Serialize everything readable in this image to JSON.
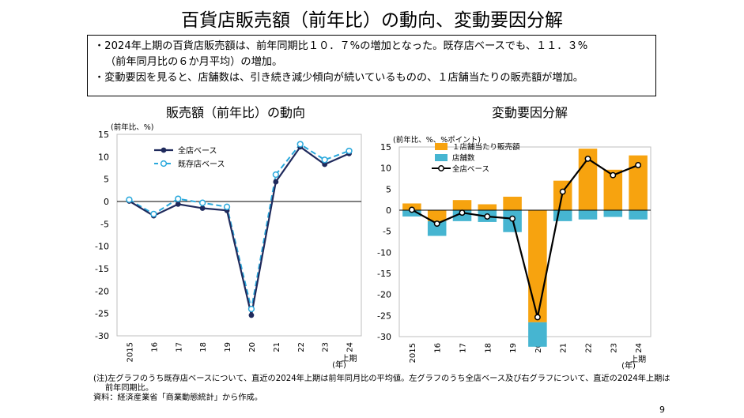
{
  "title": "百貨店販売額（前年比）の動向、変動要因分解",
  "summary": {
    "line1": "・2024年上期の百貨店販売額は、前年同期比１０．７%の増加となった。既存店ベースでも、１１．３%",
    "line2": "（前年同月比の６か月平均）の増加。",
    "line3": "・変動要因を見ると、店舗数は、引き続き減少傾向が続いているものの、１店舗当たりの販売額が増加。"
  },
  "notes": {
    "line1": "(注)左グラフのうち既存店ベースについて、直近の2024年上期は前年同月比の平均値。左グラフのうち全店ベース及び右グラフについて、直近の2024年上期は",
    "line2": "前年同期比。",
    "line3": "資料：経済産業省「商業動態統計」から作成。"
  },
  "page_number": "9",
  "chart_data": [
    {
      "type": "line",
      "title": "販売額（前年比）の動向",
      "unit_label": "(前年比、%)",
      "xlabel": "(年)",
      "categories": [
        "2015",
        "16",
        "17",
        "18",
        "19",
        "20",
        "21",
        "22",
        "23",
        "24"
      ],
      "last_category_sub": "上期",
      "ylim": [
        -30,
        15
      ],
      "yticks": [
        15,
        10,
        5,
        0,
        -5,
        -10,
        -15,
        -20,
        -25,
        -30
      ],
      "legend_position": "top-left",
      "colors": {
        "all_stores": "#1f2a5c",
        "existing_stores": "#29a8dc"
      },
      "series": [
        {
          "name": "全店ベース",
          "values": [
            0.1,
            -3.2,
            -0.6,
            -1.5,
            -2.0,
            -25.4,
            4.4,
            12.2,
            8.3,
            10.7
          ]
        },
        {
          "name": "既存店ベース",
          "values": [
            0.4,
            -2.8,
            0.6,
            -0.3,
            -1.2,
            -24.0,
            6.0,
            12.8,
            9.3,
            11.3
          ]
        }
      ]
    },
    {
      "type": "bar",
      "title": "変動要因分解",
      "unit_label": "(前年比、%、%ポイント)",
      "xlabel": "(年)",
      "categories": [
        "2015",
        "16",
        "17",
        "18",
        "19",
        "20",
        "21",
        "22",
        "23",
        "24"
      ],
      "last_category_sub": "上期",
      "ylim": [
        -30,
        15
      ],
      "yticks": [
        15,
        10,
        5,
        0,
        -5,
        -10,
        -15,
        -20,
        -25,
        -30
      ],
      "legend_position": "top-left",
      "stacked": true,
      "colors": {
        "per_store": "#f7a30f",
        "store_count": "#46b5d1",
        "all_stores": "#000000"
      },
      "series": [
        {
          "name": "１店舗当たり販売額",
          "kind": "bar",
          "values": [
            1.6,
            -2.6,
            2.4,
            1.4,
            3.2,
            -26.6,
            7.0,
            14.6,
            9.6,
            13.0
          ]
        },
        {
          "name": "店舗数",
          "kind": "bar",
          "values": [
            -1.5,
            -3.5,
            -2.6,
            -2.8,
            -5.2,
            -5.8,
            -2.6,
            -2.2,
            -1.6,
            -2.2
          ]
        },
        {
          "name": "全店ベース",
          "kind": "line",
          "values": [
            0.1,
            -3.2,
            -0.6,
            -1.5,
            -2.0,
            -25.4,
            4.4,
            12.2,
            8.3,
            10.7
          ]
        }
      ]
    }
  ]
}
